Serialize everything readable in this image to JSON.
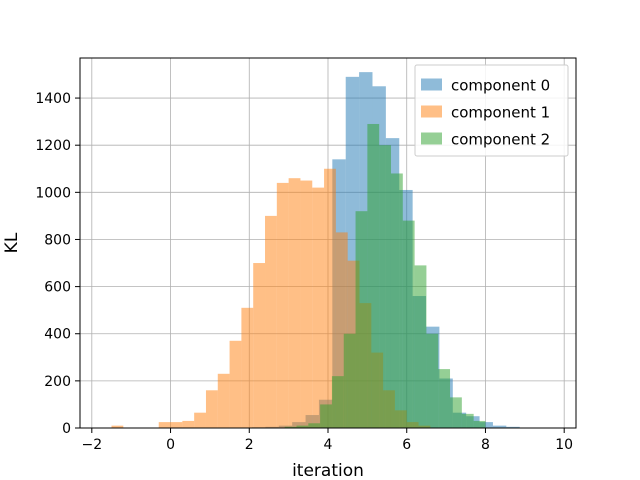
{
  "chart_data": {
    "type": "bar",
    "subtype": "overlapping-histogram",
    "title": "",
    "xlabel": "iteration",
    "ylabel": "KL",
    "xlim": [
      -2.3,
      10.3
    ],
    "ylim": [
      0,
      1570
    ],
    "x_ticks": [
      -2,
      0,
      2,
      4,
      6,
      8,
      10
    ],
    "y_ticks": [
      0,
      200,
      400,
      600,
      800,
      1000,
      1200,
      1400
    ],
    "grid": true,
    "legend_position": "top-right",
    "series": [
      {
        "name": "component 0",
        "color": "#1f77b4",
        "alpha": 0.5,
        "bins": [
          {
            "x0": 1.73,
            "x1": 2.07,
            "value": 2
          },
          {
            "x0": 2.07,
            "x1": 2.41,
            "value": 3
          },
          {
            "x0": 2.41,
            "x1": 2.75,
            "value": 5
          },
          {
            "x0": 2.75,
            "x1": 3.09,
            "value": 10
          },
          {
            "x0": 3.09,
            "x1": 3.43,
            "value": 25
          },
          {
            "x0": 3.43,
            "x1": 3.77,
            "value": 55
          },
          {
            "x0": 3.77,
            "x1": 4.11,
            "value": 120
          },
          {
            "x0": 4.11,
            "x1": 4.45,
            "value": 1140
          },
          {
            "x0": 4.45,
            "x1": 4.79,
            "value": 1490
          },
          {
            "x0": 4.79,
            "x1": 5.13,
            "value": 1510
          },
          {
            "x0": 5.13,
            "x1": 5.47,
            "value": 1450
          },
          {
            "x0": 5.47,
            "x1": 5.81,
            "value": 1230
          },
          {
            "x0": 5.81,
            "x1": 6.15,
            "value": 1010
          },
          {
            "x0": 6.15,
            "x1": 6.49,
            "value": 560
          },
          {
            "x0": 6.49,
            "x1": 6.83,
            "value": 430
          },
          {
            "x0": 6.83,
            "x1": 7.17,
            "value": 210
          },
          {
            "x0": 7.17,
            "x1": 7.51,
            "value": 65
          },
          {
            "x0": 7.51,
            "x1": 7.85,
            "value": 50
          },
          {
            "x0": 7.85,
            "x1": 8.19,
            "value": 25
          },
          {
            "x0": 8.19,
            "x1": 8.53,
            "value": 10
          },
          {
            "x0": 8.53,
            "x1": 8.87,
            "value": 5
          }
        ]
      },
      {
        "name": "component 1",
        "color": "#ff7f0e",
        "alpha": 0.5,
        "bins": [
          {
            "x0": -1.5,
            "x1": -1.2,
            "value": 10
          },
          {
            "x0": -0.3,
            "x1": 0.0,
            "value": 25
          },
          {
            "x0": 0.0,
            "x1": 0.3,
            "value": 25
          },
          {
            "x0": 0.3,
            "x1": 0.6,
            "value": 30
          },
          {
            "x0": 0.6,
            "x1": 0.9,
            "value": 65
          },
          {
            "x0": 0.9,
            "x1": 1.2,
            "value": 160
          },
          {
            "x0": 1.2,
            "x1": 1.5,
            "value": 230
          },
          {
            "x0": 1.5,
            "x1": 1.8,
            "value": 370
          },
          {
            "x0": 1.8,
            "x1": 2.1,
            "value": 510
          },
          {
            "x0": 2.1,
            "x1": 2.4,
            "value": 700
          },
          {
            "x0": 2.4,
            "x1": 2.7,
            "value": 900
          },
          {
            "x0": 2.7,
            "x1": 3.0,
            "value": 1040
          },
          {
            "x0": 3.0,
            "x1": 3.3,
            "value": 1060
          },
          {
            "x0": 3.3,
            "x1": 3.6,
            "value": 1050
          },
          {
            "x0": 3.6,
            "x1": 3.9,
            "value": 1020
          },
          {
            "x0": 3.9,
            "x1": 4.2,
            "value": 1100
          },
          {
            "x0": 4.2,
            "x1": 4.5,
            "value": 830
          },
          {
            "x0": 4.5,
            "x1": 4.8,
            "value": 710
          },
          {
            "x0": 4.8,
            "x1": 5.1,
            "value": 530
          },
          {
            "x0": 5.1,
            "x1": 5.4,
            "value": 320
          },
          {
            "x0": 5.4,
            "x1": 5.7,
            "value": 160
          },
          {
            "x0": 5.7,
            "x1": 6.0,
            "value": 75
          },
          {
            "x0": 6.0,
            "x1": 6.3,
            "value": 25
          },
          {
            "x0": 6.3,
            "x1": 6.6,
            "value": 10
          }
        ]
      },
      {
        "name": "component 2",
        "color": "#2ca02c",
        "alpha": 0.5,
        "bins": [
          {
            "x0": 2.9,
            "x1": 3.2,
            "value": 5
          },
          {
            "x0": 3.2,
            "x1": 3.5,
            "value": 10
          },
          {
            "x0": 3.5,
            "x1": 3.8,
            "value": 20
          },
          {
            "x0": 3.8,
            "x1": 4.1,
            "value": 100
          },
          {
            "x0": 4.1,
            "x1": 4.4,
            "value": 220
          },
          {
            "x0": 4.4,
            "x1": 4.7,
            "value": 400
          },
          {
            "x0": 4.7,
            "x1": 5.0,
            "value": 920
          },
          {
            "x0": 5.0,
            "x1": 5.3,
            "value": 1290
          },
          {
            "x0": 5.3,
            "x1": 5.6,
            "value": 1200
          },
          {
            "x0": 5.6,
            "x1": 5.9,
            "value": 1080
          },
          {
            "x0": 5.9,
            "x1": 6.2,
            "value": 880
          },
          {
            "x0": 6.2,
            "x1": 6.5,
            "value": 690
          },
          {
            "x0": 6.5,
            "x1": 6.8,
            "value": 400
          },
          {
            "x0": 6.8,
            "x1": 7.1,
            "value": 250
          },
          {
            "x0": 7.1,
            "x1": 7.4,
            "value": 130
          },
          {
            "x0": 7.4,
            "x1": 7.7,
            "value": 60
          },
          {
            "x0": 7.7,
            "x1": 8.0,
            "value": 30
          }
        ]
      }
    ]
  }
}
